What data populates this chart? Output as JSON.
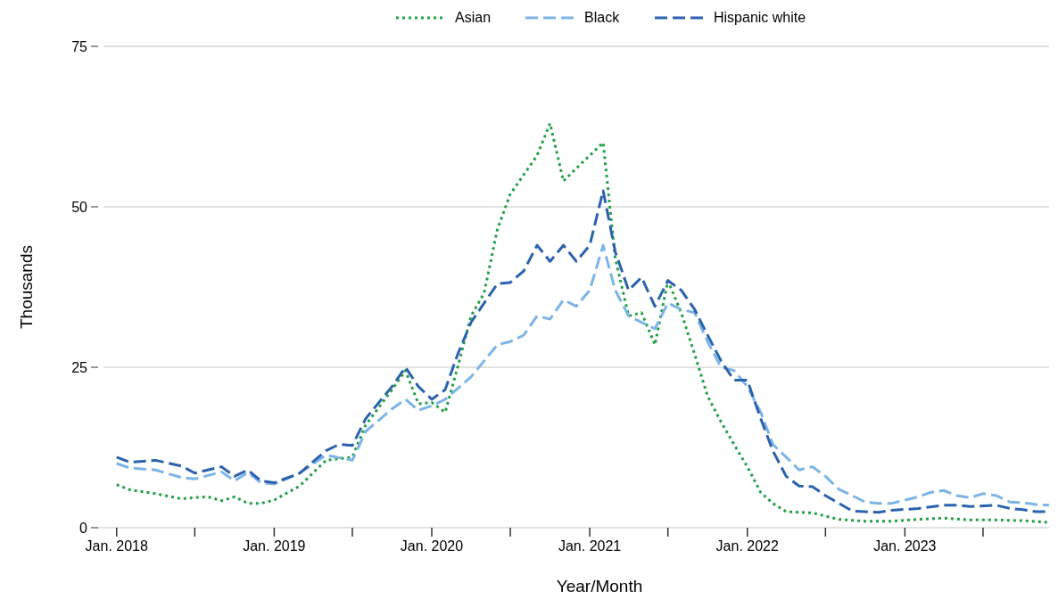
{
  "chart_data": {
    "type": "line",
    "xlabel": "Year/Month",
    "ylabel": "Thousands",
    "xlim": [
      "2017-11-15",
      "2023-12"
    ],
    "ylim": [
      0,
      75
    ],
    "yticks": [
      0,
      25,
      50,
      75
    ],
    "grid": "y",
    "legend": "top",
    "xticks": [
      {
        "value": "2018-01",
        "label": "Jan. 2018"
      },
      {
        "value": "2018-07",
        "label": null
      },
      {
        "value": "2019-01",
        "label": "Jan. 2019"
      },
      {
        "value": "2019-07",
        "label": null
      },
      {
        "value": "2020-01",
        "label": "Jan. 2020"
      },
      {
        "value": "2020-07",
        "label": null
      },
      {
        "value": "2021-01",
        "label": "Jan. 2021"
      },
      {
        "value": "2021-07",
        "label": null
      },
      {
        "value": "2022-01",
        "label": "Jan. 2022"
      },
      {
        "value": "2022-07",
        "label": null
      },
      {
        "value": "2023-01",
        "label": "Jan. 2023"
      },
      {
        "value": "2023-07",
        "label": null
      }
    ],
    "series": [
      {
        "name": "Asian",
        "color": "#22a046",
        "line_style": "dotted",
        "x": [
          "2018-01",
          "2018-02",
          "2018-04",
          "2018-06",
          "2018-07",
          "2018-08",
          "2018-09",
          "2018-10",
          "2018-11",
          "2018-12",
          "2019-01",
          "2019-03",
          "2019-05",
          "2019-07",
          "2019-08",
          "2019-10",
          "2019-11",
          "2019-12",
          "2020-01",
          "2020-02",
          "2020-03",
          "2020-04",
          "2020-05",
          "2020-06",
          "2020-07",
          "2020-09",
          "2020-10",
          "2020-11",
          "2020-12",
          "2021-01",
          "2021-02",
          "2021-03",
          "2021-04",
          "2021-05",
          "2021-06",
          "2021-07",
          "2021-08",
          "2021-09",
          "2021-10",
          "2021-11",
          "2021-12",
          "2022-01",
          "2022-02",
          "2022-03",
          "2022-04",
          "2022-05",
          "2022-06",
          "2022-08",
          "2022-10",
          "2022-12",
          "2023-02",
          "2023-04",
          "2023-06",
          "2023-08",
          "2023-10",
          "2023-12"
        ],
        "values": [
          6.7,
          5.9,
          5.3,
          4.5,
          4.7,
          4.8,
          4.2,
          4.8,
          3.8,
          3.8,
          4.3,
          6.5,
          10.5,
          11,
          16,
          21.5,
          24.5,
          19.3,
          19.5,
          18,
          25,
          33,
          36.5,
          46.5,
          52,
          58,
          63,
          54,
          56,
          58,
          60,
          42,
          33,
          33.5,
          28.5,
          38.5,
          33.5,
          27,
          20.5,
          16.5,
          13,
          9.5,
          5.5,
          3.8,
          2.5,
          2.4,
          2.3,
          1.3,
          1,
          1,
          1.3,
          1.5,
          1.2,
          1.2,
          1.1,
          0.8
        ]
      },
      {
        "name": "Black",
        "color": "#7db4e6",
        "line_style": "dashed",
        "x": [
          "2018-01",
          "2018-02",
          "2018-04",
          "2018-06",
          "2018-07",
          "2018-09",
          "2018-10",
          "2018-11",
          "2018-12",
          "2019-01",
          "2019-03",
          "2019-05",
          "2019-07",
          "2019-08",
          "2019-10",
          "2019-11",
          "2019-12",
          "2020-01",
          "2020-02",
          "2020-04",
          "2020-06",
          "2020-07",
          "2020-08",
          "2020-09",
          "2020-10",
          "2020-11",
          "2020-12",
          "2021-01",
          "2021-02",
          "2021-03",
          "2021-04",
          "2021-05",
          "2021-06",
          "2021-07",
          "2021-08",
          "2021-09",
          "2021-10",
          "2021-11",
          "2021-12",
          "2022-01",
          "2022-02",
          "2022-03",
          "2022-04",
          "2022-05",
          "2022-06",
          "2022-07",
          "2022-08",
          "2022-09",
          "2022-10",
          "2022-11",
          "2022-12",
          "2023-02",
          "2023-03",
          "2023-04",
          "2023-05",
          "2023-06",
          "2023-07",
          "2023-08",
          "2023-09",
          "2023-10",
          "2023-11",
          "2023-12"
        ],
        "values": [
          10,
          9.3,
          9,
          7.8,
          7.6,
          8.7,
          7.3,
          8.6,
          7,
          6.8,
          8.5,
          11.3,
          10.5,
          15,
          18.5,
          20,
          18.3,
          19,
          20,
          23.5,
          28.5,
          29,
          30,
          33,
          32.5,
          35.5,
          34.5,
          37,
          44,
          37,
          33,
          32,
          31,
          35,
          34,
          33.5,
          29,
          25,
          24.5,
          22,
          18,
          13,
          11,
          9,
          9.5,
          8,
          6,
          5,
          4,
          3.8,
          3.8,
          4.8,
          5.5,
          5.8,
          5,
          4.7,
          5.3,
          5,
          4,
          3.9,
          3.6,
          3.5
        ]
      },
      {
        "name": "Hispanic white",
        "color": "#2b62ad",
        "line_style": "dashed",
        "x": [
          "2018-01",
          "2018-02",
          "2018-04",
          "2018-06",
          "2018-07",
          "2018-09",
          "2018-10",
          "2018-11",
          "2018-12",
          "2019-01",
          "2019-03",
          "2019-05",
          "2019-06",
          "2019-07",
          "2019-08",
          "2019-10",
          "2019-11",
          "2019-12",
          "2020-01",
          "2020-02",
          "2020-03",
          "2020-04",
          "2020-06",
          "2020-07",
          "2020-08",
          "2020-09",
          "2020-10",
          "2020-11",
          "2020-12",
          "2021-01",
          "2021-02",
          "2021-03",
          "2021-04",
          "2021-05",
          "2021-06",
          "2021-07",
          "2021-08",
          "2021-09",
          "2021-10",
          "2021-11",
          "2021-12",
          "2022-01",
          "2022-02",
          "2022-03",
          "2022-04",
          "2022-05",
          "2022-06",
          "2022-07",
          "2022-08",
          "2022-09",
          "2022-10",
          "2022-11",
          "2022-12",
          "2023-02",
          "2023-04",
          "2023-05",
          "2023-06",
          "2023-08",
          "2023-09",
          "2023-10",
          "2023-11",
          "2023-12"
        ],
        "values": [
          11,
          10.2,
          10.5,
          9.6,
          8.5,
          9.5,
          8,
          9,
          7.3,
          7,
          8.5,
          12,
          13,
          12.8,
          17,
          22,
          25,
          22,
          20,
          21.5,
          27,
          32,
          38,
          38.2,
          40,
          44,
          41.5,
          44,
          41.5,
          44,
          52.5,
          43,
          37,
          39,
          34.5,
          38.5,
          37,
          34,
          30,
          26,
          23,
          23,
          17,
          12,
          8,
          6.5,
          6.4,
          5,
          3.8,
          2.6,
          2.5,
          2.4,
          2.7,
          3,
          3.5,
          3.5,
          3.3,
          3.5,
          3,
          2.8,
          2.5,
          2.5
        ]
      }
    ]
  }
}
